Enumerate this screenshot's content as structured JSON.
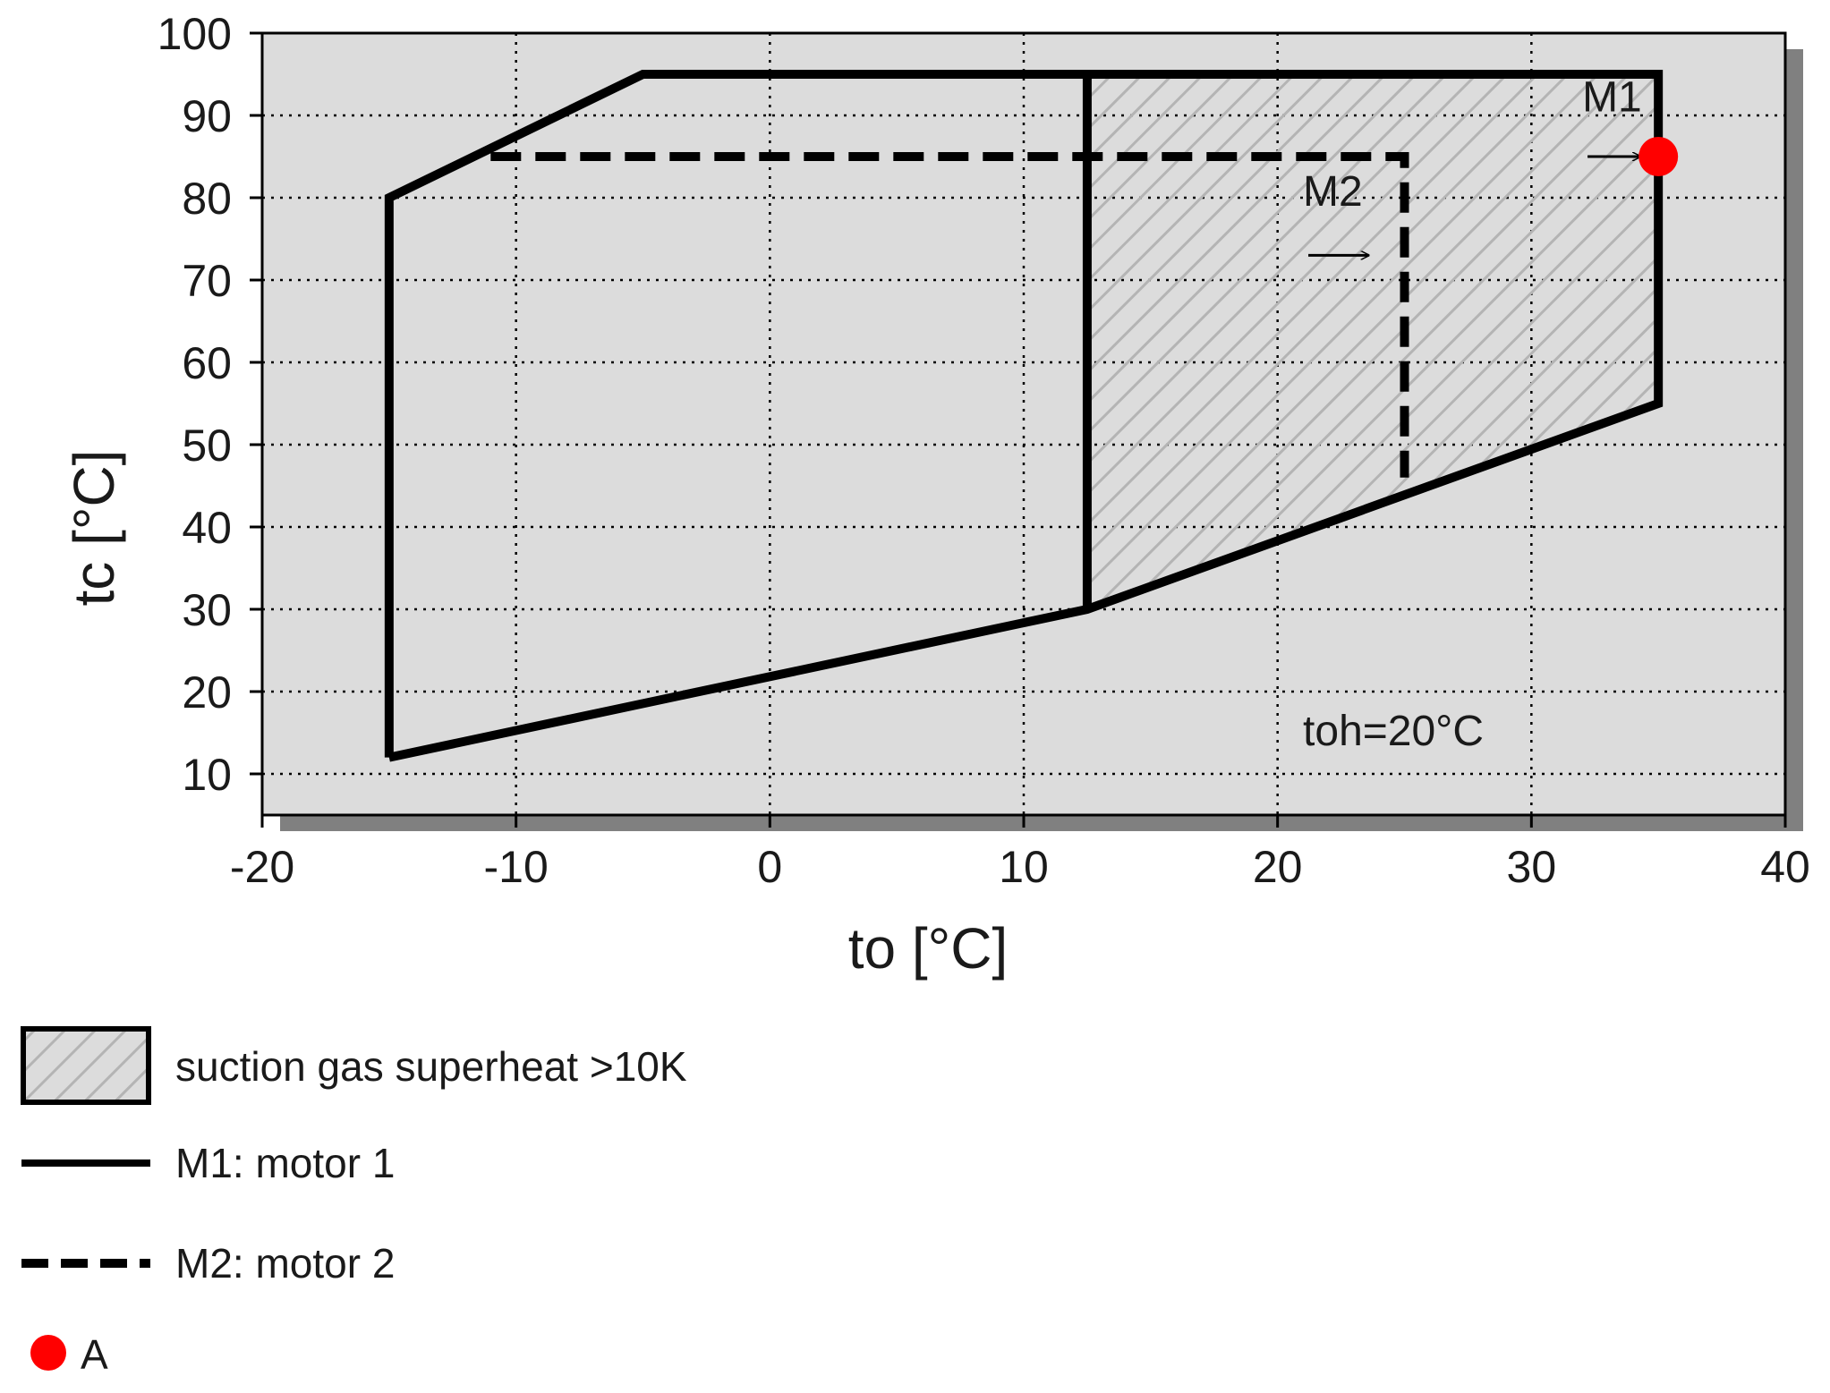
{
  "chart_data": {
    "type": "line",
    "xlabel": "to [°C]",
    "ylabel": "tc [°C]",
    "xlim": [
      -20,
      40
    ],
    "ylim": [
      5,
      100
    ],
    "x_ticks": [
      -20,
      -10,
      0,
      10,
      20,
      30,
      40
    ],
    "y_ticks": [
      10,
      20,
      30,
      40,
      50,
      60,
      70,
      80,
      90,
      100
    ],
    "grid": true,
    "colors": {
      "plot_background": "#dcdcdc",
      "hatch": "#b4b4b4",
      "envelope": "#000000",
      "point": "#ff0000",
      "shadow": "#808080"
    },
    "series": [
      {
        "name": "M1: motor 1",
        "style": "solid",
        "label": "M1",
        "points": [
          [
            -15,
            12
          ],
          [
            -15,
            80
          ],
          [
            -5,
            95
          ],
          [
            35,
            95
          ],
          [
            35,
            55
          ],
          [
            12.5,
            30
          ],
          [
            -15,
            12
          ]
        ]
      },
      {
        "name": "M2: motor 2",
        "style": "dashed",
        "label": "M2",
        "points": [
          [
            -11,
            85
          ],
          [
            25,
            85
          ],
          [
            25,
            46
          ]
        ]
      }
    ],
    "regions": [
      {
        "name": "suction gas superheat >10K",
        "fill": "hatched",
        "points": [
          [
            12.5,
            30
          ],
          [
            12.5,
            95
          ],
          [
            35,
            95
          ],
          [
            35,
            55
          ]
        ]
      },
      {
        "name": "M1M2_divider",
        "points": [
          [
            12.5,
            30
          ],
          [
            12.5,
            95
          ]
        ]
      }
    ],
    "labels": [
      {
        "text": "M1",
        "x": 32,
        "y": 90.5,
        "arrow_to": [
          35,
          85
        ]
      },
      {
        "text": "M2",
        "x": 21,
        "y": 79,
        "arrow_to": [
          24.3,
          73
        ]
      }
    ],
    "annotation": {
      "text": "toh=20°C",
      "x": 21,
      "y": 13.5
    },
    "points": [
      {
        "name": "A",
        "x": 35,
        "y": 85
      }
    ],
    "legend": {
      "position": "bottom-left",
      "items": [
        {
          "label": "suction gas superheat >10K",
          "kind": "hatched-box"
        },
        {
          "label": "M1: motor 1",
          "kind": "solid-line"
        },
        {
          "label": "M2: motor 2",
          "kind": "dashed-line"
        },
        {
          "label": "A",
          "kind": "red-dot"
        }
      ]
    }
  }
}
